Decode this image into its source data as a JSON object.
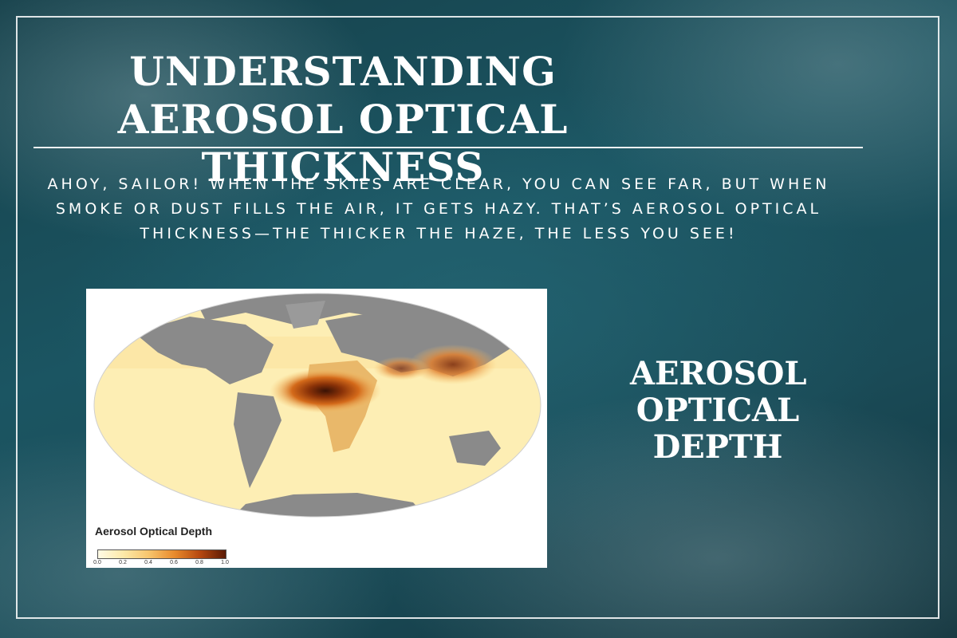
{
  "title": "UNDERSTANDING AEROSOL OPTICAL THICKNESS",
  "intro": "AHOY, SAILOR! WHEN THE SKIES ARE CLEAR, YOU CAN SEE FAR, BUT WHEN SMOKE OR DUST FILLS THE AIR, IT GETS HAZY. THAT’S AEROSOL OPTICAL THICKNESS—THE THICKER THE HAZE, THE LESS YOU SEE!",
  "map": {
    "legend_title": "Aerosol Optical Depth",
    "legend_ticks": [
      "0.0",
      "0.2",
      "0.4",
      "0.6",
      "0.8",
      "1.0"
    ]
  },
  "side_label": "AEROSOL OPTICAL DEPTH",
  "colors": {
    "background": "#1b5562",
    "text": "#ffffff",
    "map_low": "#fffbe6",
    "map_high": "#5a1a05",
    "land_no_data": "#8a8a8a"
  }
}
